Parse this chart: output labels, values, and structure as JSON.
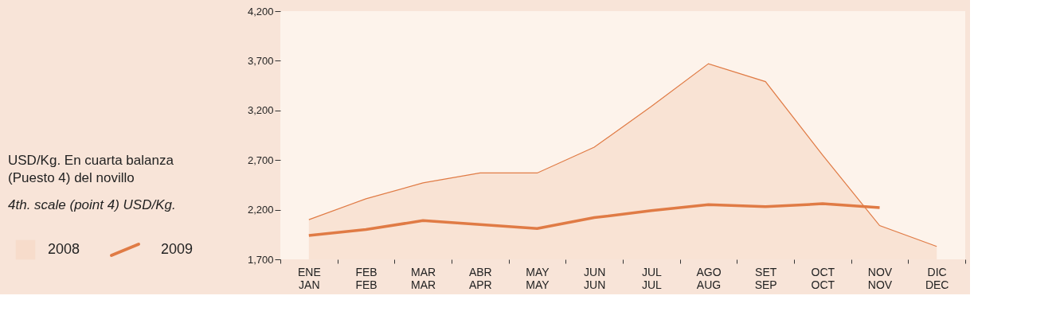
{
  "chart_data": {
    "type": "line",
    "annotations": [
      "USD/Kg. En cuarta balanza (Puesto 4) del novillo",
      "4th. scale (point 4) USD/Kg."
    ],
    "categories": [
      "ENE\nJAN",
      "FEB\nFEB",
      "MAR\nMAR",
      "ABR\nAPR",
      "MAY\nMAY",
      "JUN\nJUN",
      "JUL\nJUL",
      "AGO\nAUG",
      "SET\nSEP",
      "OCT\nOCT",
      "NOV\nNOV",
      "DIC\nDEC"
    ],
    "series": [
      {
        "name": "2008",
        "type": "area",
        "color": "#f7dccb",
        "values": [
          2100,
          2310,
          2470,
          2570,
          2570,
          2830,
          3240,
          3670,
          3490,
          2750,
          2040,
          1830
        ]
      },
      {
        "name": "2009",
        "color": "#e07b45",
        "values": [
          1940,
          2000,
          2090,
          2050,
          2010,
          2120,
          2190,
          2250,
          2230,
          2260,
          2220,
          null
        ]
      }
    ],
    "ylim": [
      1700,
      4200
    ],
    "yticks": [
      {
        "value": 1700,
        "label": "1,700"
      },
      {
        "value": 2200,
        "label": "2,200"
      },
      {
        "value": 2700,
        "label": "2,700"
      },
      {
        "value": 3200,
        "label": "3,200"
      },
      {
        "value": 3700,
        "label": "3,700"
      },
      {
        "value": 4200,
        "label": "4,200"
      }
    ],
    "grid": false,
    "legend": "left",
    "line_style": "solid"
  }
}
